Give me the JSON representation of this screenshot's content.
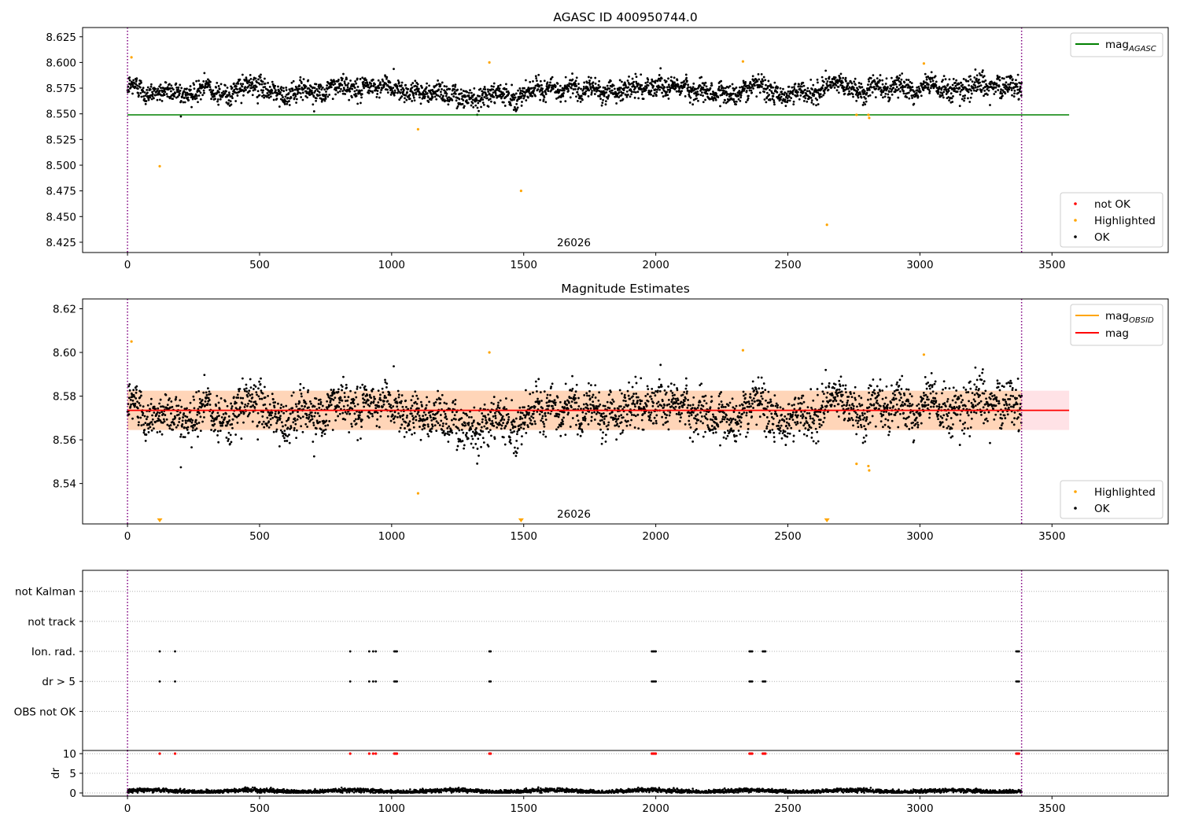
{
  "chart_data": [
    {
      "type": "scatter",
      "title": "AGASC ID 400950744.0",
      "xlim": [
        -170,
        3940
      ],
      "ylim": [
        8.415,
        8.634
      ],
      "xticks": [
        0,
        500,
        1000,
        1500,
        2000,
        2500,
        3000,
        3500
      ],
      "xtick_labels": [
        "0",
        "500",
        "1000",
        "1500",
        "2000",
        "2500",
        "3000",
        "3500"
      ],
      "yticks": [
        8.425,
        8.45,
        8.475,
        8.5,
        8.525,
        8.55,
        8.575,
        8.6,
        8.625
      ],
      "ytick_labels": [
        "8.425",
        "8.450",
        "8.475",
        "8.500",
        "8.525",
        "8.550",
        "8.575",
        "8.600",
        "8.625"
      ],
      "obsid_label": "26026",
      "obsid_label_x": 1690,
      "obs_boundaries_x": [
        0,
        3385
      ],
      "series_ok": {
        "name": "OK",
        "color": "#000000",
        "n_points": 3000,
        "x_range": [
          0,
          3385
        ],
        "noise_center": 8.574,
        "noise_spread": 0.007
      },
      "series_highlighted": {
        "name": "Highlighted",
        "color": "#ffa500",
        "points": [
          [
            15,
            8.605
          ],
          [
            122,
            8.499
          ],
          [
            1100,
            8.535
          ],
          [
            1370,
            8.6
          ],
          [
            1490,
            8.475
          ],
          [
            2330,
            8.601
          ],
          [
            2648,
            8.442
          ],
          [
            2760,
            8.549
          ],
          [
            2805,
            8.549
          ],
          [
            2808,
            8.546
          ],
          [
            3015,
            8.599
          ]
        ]
      },
      "series_not_ok": {
        "name": "not OK",
        "color": "#ff0000",
        "points": []
      },
      "hline": {
        "name": "mag",
        "subscript": "AGASC",
        "y": 8.549,
        "color": "#008000",
        "x_range": [
          0,
          3565
        ]
      },
      "legend_upper": [
        {
          "label": "mag",
          "subscript": "AGASC",
          "color": "#008000",
          "kind": "line"
        }
      ],
      "legend_upper_position": "upper right",
      "legend_lower": [
        {
          "label": "not OK",
          "color": "#ff0000",
          "kind": "marker"
        },
        {
          "label": "Highlighted",
          "color": "#ffa500",
          "kind": "marker"
        },
        {
          "label": "OK",
          "color": "#000000",
          "kind": "marker"
        }
      ],
      "legend_lower_position": "lower right"
    },
    {
      "type": "scatter",
      "title": "Magnitude Estimates",
      "xlim": [
        -170,
        3940
      ],
      "ylim": [
        8.5215,
        8.6245
      ],
      "xticks": [
        0,
        500,
        1000,
        1500,
        2000,
        2500,
        3000,
        3500
      ],
      "xtick_labels": [
        "0",
        "500",
        "1000",
        "1500",
        "2000",
        "2500",
        "3000",
        "3500"
      ],
      "yticks": [
        8.54,
        8.56,
        8.58,
        8.6,
        8.62
      ],
      "ytick_labels": [
        "8.54",
        "8.56",
        "8.58",
        "8.60",
        "8.62"
      ],
      "obsid_label": "26026",
      "obsid_label_x": 1690,
      "obs_boundaries_x": [
        0,
        3385
      ],
      "series_ok": {
        "name": "OK",
        "color": "#000000",
        "n_points": 3000,
        "x_range": [
          0,
          3385
        ],
        "noise_center": 8.574,
        "noise_spread": 0.007
      },
      "series_highlighted": {
        "name": "Highlighted",
        "color": "#ffa500",
        "points": [
          [
            15,
            8.605
          ],
          [
            1100,
            8.5355
          ],
          [
            1370,
            8.6
          ],
          [
            2330,
            8.601
          ],
          [
            2760,
            8.549
          ],
          [
            2805,
            8.548
          ],
          [
            2808,
            8.546
          ],
          [
            3015,
            8.599
          ]
        ]
      },
      "offscale_below_x": [
        122,
        1490,
        2648
      ],
      "mag_line": {
        "name": "mag",
        "y": 8.5735,
        "color": "#ff0000",
        "x_range": [
          0,
          3565
        ]
      },
      "mag_band": {
        "y_range": [
          8.5645,
          8.5825
        ],
        "color": "#ffb6c1",
        "x_range": [
          0,
          3565
        ]
      },
      "obsid_band": {
        "y_range": [
          8.5645,
          8.5825
        ],
        "color": "#ffa500",
        "x_range": [
          0,
          3385
        ]
      },
      "legend_upper": [
        {
          "label": "mag",
          "subscript": "OBSID",
          "color": "#ffa500",
          "kind": "line"
        },
        {
          "label": "mag",
          "subscript": "",
          "color": "#ff0000",
          "kind": "line"
        }
      ],
      "legend_upper_position": "upper right",
      "legend_lower": [
        {
          "label": "Highlighted",
          "color": "#ffa500",
          "kind": "marker"
        },
        {
          "label": "OK",
          "color": "#000000",
          "kind": "marker"
        }
      ],
      "legend_lower_position": "lower right"
    },
    {
      "type": "scatter",
      "title": "",
      "xlim": [
        -170,
        3940
      ],
      "flag_categories": [
        "not Kalman",
        "not track",
        "Ion. rad.",
        "dr > 5",
        "OBS not OK"
      ],
      "flag_events_x": [
        122,
        180,
        843,
        915,
        930,
        940,
        1010,
        1015,
        1020,
        1370,
        1375,
        1985,
        1990,
        1995,
        2000,
        2355,
        2360,
        2365,
        2405,
        2410,
        2415,
        3365,
        3370,
        3375
      ],
      "flag_points": {
        "Ion. rad.": "flag_events_x",
        "dr > 5": "flag_events_x",
        "not Kalman": [],
        "not track": [],
        "OBS not OK": []
      },
      "obs_boundaries_x": [
        0,
        3385
      ]
    },
    {
      "type": "scatter",
      "title": "",
      "ylabel": "dr",
      "xlim": [
        -170,
        3940
      ],
      "ylim": [
        -0.8,
        10.8
      ],
      "xticks": [
        0,
        500,
        1000,
        1500,
        2000,
        2500,
        3000,
        3500
      ],
      "xtick_labels": [
        "0",
        "500",
        "1000",
        "1500",
        "2000",
        "2500",
        "3000",
        "3500"
      ],
      "yticks": [
        0,
        5,
        10
      ],
      "ytick_labels": [
        "0",
        "5",
        "10"
      ],
      "dr_ok": {
        "color": "#000000",
        "n_points": 3000,
        "x_range": [
          0,
          3385
        ],
        "mean": 0.5,
        "spread": 0.25
      },
      "dr_flagged": {
        "color": "#ff0000",
        "y": 10,
        "x": "flag_events_x"
      },
      "obs_boundaries_x": [
        0,
        3385
      ]
    }
  ]
}
